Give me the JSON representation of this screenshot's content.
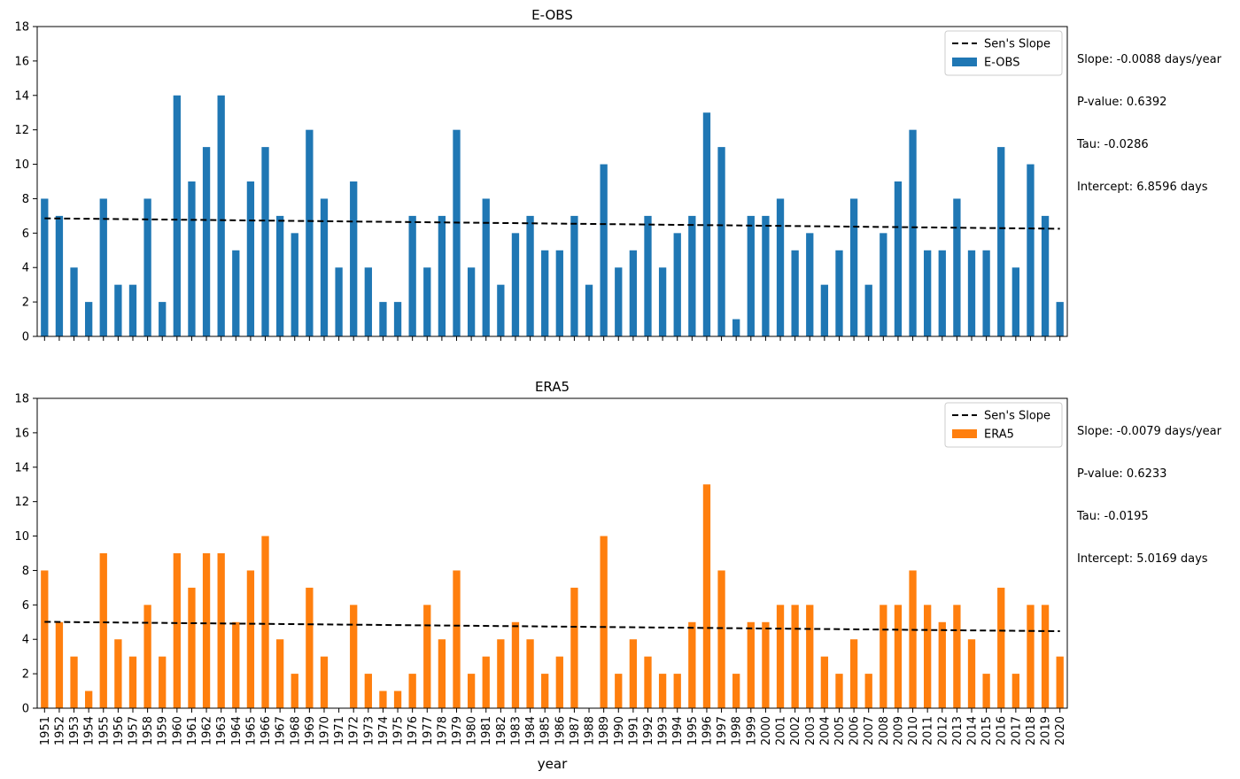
{
  "chart_data": [
    {
      "type": "bar",
      "title": "E-OBS",
      "xlabel": "",
      "ylabel": "",
      "ylim": [
        0,
        18
      ],
      "yticks": [
        0,
        2,
        4,
        6,
        8,
        10,
        12,
        14,
        16,
        18
      ],
      "categories": [
        "1951",
        "1952",
        "1953",
        "1954",
        "1955",
        "1956",
        "1957",
        "1958",
        "1959",
        "1960",
        "1961",
        "1962",
        "1963",
        "1964",
        "1965",
        "1966",
        "1967",
        "1968",
        "1969",
        "1970",
        "1971",
        "1972",
        "1973",
        "1974",
        "1975",
        "1976",
        "1977",
        "1978",
        "1979",
        "1980",
        "1981",
        "1982",
        "1983",
        "1984",
        "1985",
        "1986",
        "1987",
        "1988",
        "1989",
        "1990",
        "1991",
        "1992",
        "1993",
        "1994",
        "1995",
        "1996",
        "1997",
        "1998",
        "1999",
        "2000",
        "2001",
        "2002",
        "2003",
        "2004",
        "2005",
        "2006",
        "2007",
        "2008",
        "2009",
        "2010",
        "2011",
        "2012",
        "2013",
        "2014",
        "2015",
        "2016",
        "2017",
        "2018",
        "2019",
        "2020"
      ],
      "series": [
        {
          "name": "E-OBS",
          "color": "#1f77b4",
          "values": [
            8,
            7,
            4,
            2,
            8,
            3,
            3,
            8,
            2,
            14,
            9,
            11,
            14,
            5,
            9,
            11,
            7,
            6,
            12,
            8,
            4,
            9,
            4,
            2,
            2,
            7,
            4,
            7,
            12,
            4,
            8,
            3,
            6,
            7,
            5,
            5,
            7,
            3,
            10,
            4,
            5,
            7,
            4,
            6,
            7,
            13,
            11,
            1,
            7,
            7,
            8,
            5,
            6,
            3,
            5,
            8,
            3,
            6,
            9,
            12,
            5,
            5,
            8,
            5,
            5,
            11,
            4,
            10,
            7,
            2
          ]
        }
      ],
      "trend": {
        "name": "Sen's Slope",
        "slope": -0.0088,
        "intercept": 6.8596,
        "style": "dashed",
        "color": "#000000"
      },
      "legend_position": "top-right",
      "stats": [
        "Slope: -0.0088 days/year",
        "P-value: 0.6392",
        "Tau: -0.0286",
        "Intercept: 6.8596 days"
      ],
      "show_xtick_labels": false
    },
    {
      "type": "bar",
      "title": "ERA5",
      "xlabel": "year",
      "ylabel": "",
      "ylim": [
        0,
        18
      ],
      "yticks": [
        0,
        2,
        4,
        6,
        8,
        10,
        12,
        14,
        16,
        18
      ],
      "categories": [
        "1951",
        "1952",
        "1953",
        "1954",
        "1955",
        "1956",
        "1957",
        "1958",
        "1959",
        "1960",
        "1961",
        "1962",
        "1963",
        "1964",
        "1965",
        "1966",
        "1967",
        "1968",
        "1969",
        "1970",
        "1971",
        "1972",
        "1973",
        "1974",
        "1975",
        "1976",
        "1977",
        "1978",
        "1979",
        "1980",
        "1981",
        "1982",
        "1983",
        "1984",
        "1985",
        "1986",
        "1987",
        "1988",
        "1989",
        "1990",
        "1991",
        "1992",
        "1993",
        "1994",
        "1995",
        "1996",
        "1997",
        "1998",
        "1999",
        "2000",
        "2001",
        "2002",
        "2003",
        "2004",
        "2005",
        "2006",
        "2007",
        "2008",
        "2009",
        "2010",
        "2011",
        "2012",
        "2013",
        "2014",
        "2015",
        "2016",
        "2017",
        "2018",
        "2019",
        "2020"
      ],
      "series": [
        {
          "name": "ERA5",
          "color": "#ff7f0e",
          "values": [
            8,
            5,
            3,
            1,
            9,
            4,
            3,
            6,
            3,
            9,
            7,
            9,
            9,
            5,
            8,
            10,
            4,
            2,
            7,
            3,
            0,
            6,
            2,
            1,
            1,
            2,
            6,
            4,
            8,
            2,
            3,
            4,
            5,
            4,
            2,
            3,
            7,
            0,
            10,
            2,
            4,
            3,
            2,
            2,
            5,
            13,
            8,
            2,
            5,
            5,
            6,
            6,
            6,
            3,
            2,
            4,
            2,
            6,
            6,
            8,
            6,
            5,
            6,
            4,
            2,
            7,
            2,
            6,
            6,
            3
          ]
        }
      ],
      "trend": {
        "name": "Sen's Slope",
        "slope": -0.0079,
        "intercept": 5.0169,
        "style": "dashed",
        "color": "#000000"
      },
      "legend_position": "top-right",
      "stats": [
        "Slope: -0.0079 days/year",
        "P-value: 0.6233",
        "Tau: -0.0195",
        "Intercept: 5.0169 days"
      ],
      "show_xtick_labels": true
    }
  ]
}
